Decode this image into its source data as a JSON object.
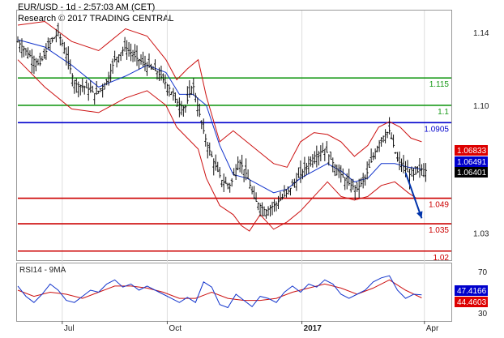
{
  "header": {
    "line1": "EUR/USD - 1d - 2:57:03 AM (CET)",
    "line2": "Research © 2017 TRADING CENTRAL"
  },
  "chart_data": {
    "type": "line",
    "instrument": "EUR/USD",
    "timeframe": "1d",
    "price_panel": {
      "y_ticks": [
        "1.14",
        "1.10",
        "1.03"
      ],
      "y_tick_values": [
        1.14,
        1.1,
        1.03
      ],
      "ylim": [
        1.015,
        1.152
      ],
      "x_labels": [
        "Jul",
        "Oct",
        "2017",
        "Apr"
      ],
      "x_label_positions": [
        33,
        111,
        211,
        302
      ],
      "bars_total": 322,
      "levels": [
        {
          "label": "1.115",
          "value": 1.115,
          "color": "#1a9a1a"
        },
        {
          "label": "1.1",
          "value": 1.1,
          "color": "#1a9a1a"
        },
        {
          "label": "1.0905",
          "value": 1.0905,
          "color": "#0000cc"
        },
        {
          "label": "1.049",
          "value": 1.049,
          "color": "#cc0000"
        },
        {
          "label": "1.035",
          "value": 1.035,
          "color": "#cc0000"
        },
        {
          "label": "1.02",
          "value": 1.02,
          "color": "#cc0000"
        }
      ],
      "price_tags": [
        {
          "label": "1.06833",
          "value": 1.06833,
          "color": "#dd0000"
        },
        {
          "label": "1.06491",
          "value": 1.06491,
          "color": "#0000cc"
        },
        {
          "label": "1.06401",
          "value": 1.06401,
          "color": "#000000"
        }
      ],
      "close_series": [
        [
          0,
          1.135
        ],
        [
          8,
          1.128
        ],
        [
          16,
          1.122
        ],
        [
          24,
          1.134
        ],
        [
          30,
          1.14
        ],
        [
          36,
          1.128
        ],
        [
          42,
          1.112
        ],
        [
          50,
          1.11
        ],
        [
          58,
          1.106
        ],
        [
          66,
          1.113
        ],
        [
          72,
          1.125
        ],
        [
          80,
          1.132
        ],
        [
          88,
          1.126
        ],
        [
          96,
          1.122
        ],
        [
          104,
          1.118
        ],
        [
          112,
          1.11
        ],
        [
          118,
          1.102
        ],
        [
          124,
          1.098
        ],
        [
          130,
          1.112
        ],
        [
          134,
          1.098
        ],
        [
          140,
          1.08
        ],
        [
          146,
          1.068
        ],
        [
          152,
          1.058
        ],
        [
          158,
          1.056
        ],
        [
          164,
          1.07
        ],
        [
          170,
          1.062
        ],
        [
          176,
          1.048
        ],
        [
          184,
          1.042
        ],
        [
          192,
          1.046
        ],
        [
          200,
          1.052
        ],
        [
          206,
          1.058
        ],
        [
          212,
          1.064
        ],
        [
          220,
          1.072
        ],
        [
          228,
          1.076
        ],
        [
          236,
          1.066
        ],
        [
          244,
          1.058
        ],
        [
          252,
          1.054
        ],
        [
          258,
          1.06
        ],
        [
          264,
          1.072
        ],
        [
          270,
          1.082
        ],
        [
          276,
          1.086
        ],
        [
          282,
          1.07
        ],
        [
          288,
          1.065
        ],
        [
          292,
          1.061
        ],
        [
          296,
          1.063
        ],
        [
          300,
          1.065
        ],
        [
          304,
          1.064
        ]
      ],
      "bollinger_upper": [
        [
          0,
          1.144
        ],
        [
          20,
          1.146
        ],
        [
          40,
          1.135
        ],
        [
          60,
          1.13
        ],
        [
          80,
          1.142
        ],
        [
          96,
          1.138
        ],
        [
          110,
          1.125
        ],
        [
          118,
          1.114
        ],
        [
          126,
          1.12
        ],
        [
          134,
          1.125
        ],
        [
          140,
          1.105
        ],
        [
          150,
          1.08
        ],
        [
          160,
          1.086
        ],
        [
          170,
          1.08
        ],
        [
          180,
          1.074
        ],
        [
          190,
          1.068
        ],
        [
          200,
          1.066
        ],
        [
          210,
          1.08
        ],
        [
          220,
          1.085
        ],
        [
          230,
          1.084
        ],
        [
          240,
          1.08
        ],
        [
          250,
          1.072
        ],
        [
          260,
          1.078
        ],
        [
          268,
          1.088
        ],
        [
          276,
          1.091
        ],
        [
          284,
          1.088
        ],
        [
          292,
          1.082
        ],
        [
          300,
          1.08
        ]
      ],
      "bollinger_lower": [
        [
          0,
          1.125
        ],
        [
          20,
          1.11
        ],
        [
          40,
          1.098
        ],
        [
          60,
          1.096
        ],
        [
          80,
          1.104
        ],
        [
          96,
          1.108
        ],
        [
          110,
          1.1
        ],
        [
          118,
          1.088
        ],
        [
          126,
          1.082
        ],
        [
          134,
          1.076
        ],
        [
          140,
          1.06
        ],
        [
          150,
          1.045
        ],
        [
          160,
          1.04
        ],
        [
          166,
          1.034
        ],
        [
          172,
          1.031
        ],
        [
          180,
          1.04
        ],
        [
          190,
          1.032
        ],
        [
          200,
          1.036
        ],
        [
          210,
          1.042
        ],
        [
          220,
          1.05
        ],
        [
          230,
          1.058
        ],
        [
          240,
          1.05
        ],
        [
          250,
          1.048
        ],
        [
          260,
          1.05
        ],
        [
          270,
          1.056
        ],
        [
          280,
          1.058
        ],
        [
          290,
          1.052
        ],
        [
          296,
          1.049
        ]
      ],
      "moving_average": [
        [
          0,
          1.136
        ],
        [
          20,
          1.132
        ],
        [
          40,
          1.122
        ],
        [
          60,
          1.11
        ],
        [
          80,
          1.116
        ],
        [
          96,
          1.122
        ],
        [
          110,
          1.118
        ],
        [
          120,
          1.106
        ],
        [
          130,
          1.106
        ],
        [
          140,
          1.1
        ],
        [
          150,
          1.078
        ],
        [
          160,
          1.062
        ],
        [
          170,
          1.06
        ],
        [
          180,
          1.056
        ],
        [
          190,
          1.052
        ],
        [
          200,
          1.054
        ],
        [
          210,
          1.06
        ],
        [
          220,
          1.064
        ],
        [
          230,
          1.068
        ],
        [
          240,
          1.064
        ],
        [
          250,
          1.058
        ],
        [
          260,
          1.06
        ],
        [
          270,
          1.068
        ],
        [
          280,
          1.068
        ],
        [
          290,
          1.066
        ],
        [
          300,
          1.065
        ]
      ],
      "forecast_arrow": {
        "from": [
          288,
          1.063
        ],
        "to": [
          300,
          1.038
        ],
        "color": "#0033aa"
      }
    },
    "rsi_panel": {
      "title": "RSI14 - 9MA",
      "y_ticks": [
        "70",
        "30"
      ],
      "y_tick_values": [
        70,
        30
      ],
      "ylim": [
        22,
        78
      ],
      "price_tags": [
        {
          "label": "47.4166",
          "value": 47.4166,
          "color": "#0000cc"
        },
        {
          "label": "44.4603",
          "value": 44.4603,
          "color": "#dd0000"
        }
      ],
      "rsi_series": [
        [
          0,
          56
        ],
        [
          6,
          46
        ],
        [
          12,
          40
        ],
        [
          18,
          48
        ],
        [
          24,
          58
        ],
        [
          30,
          52
        ],
        [
          36,
          42
        ],
        [
          42,
          40
        ],
        [
          48,
          46
        ],
        [
          54,
          52
        ],
        [
          60,
          50
        ],
        [
          66,
          58
        ],
        [
          72,
          62
        ],
        [
          78,
          55
        ],
        [
          84,
          58
        ],
        [
          90,
          52
        ],
        [
          96,
          56
        ],
        [
          102,
          52
        ],
        [
          108,
          48
        ],
        [
          114,
          44
        ],
        [
          120,
          40
        ],
        [
          126,
          45
        ],
        [
          132,
          40
        ],
        [
          138,
          60
        ],
        [
          144,
          55
        ],
        [
          150,
          38
        ],
        [
          156,
          35
        ],
        [
          162,
          48
        ],
        [
          168,
          42
        ],
        [
          174,
          36
        ],
        [
          180,
          46
        ],
        [
          186,
          44
        ],
        [
          192,
          40
        ],
        [
          198,
          50
        ],
        [
          204,
          56
        ],
        [
          210,
          50
        ],
        [
          216,
          58
        ],
        [
          222,
          55
        ],
        [
          228,
          62
        ],
        [
          234,
          58
        ],
        [
          240,
          48
        ],
        [
          246,
          44
        ],
        [
          252,
          48
        ],
        [
          258,
          52
        ],
        [
          264,
          60
        ],
        [
          270,
          64
        ],
        [
          276,
          66
        ],
        [
          282,
          52
        ],
        [
          288,
          44
        ],
        [
          294,
          48
        ],
        [
          300,
          47.4
        ]
      ],
      "rsi_ma": [
        [
          0,
          52
        ],
        [
          12,
          46
        ],
        [
          24,
          50
        ],
        [
          36,
          48
        ],
        [
          48,
          44
        ],
        [
          60,
          50
        ],
        [
          72,
          56
        ],
        [
          84,
          56
        ],
        [
          96,
          54
        ],
        [
          108,
          50
        ],
        [
          120,
          44
        ],
        [
          132,
          44
        ],
        [
          144,
          50
        ],
        [
          156,
          44
        ],
        [
          168,
          42
        ],
        [
          180,
          42
        ],
        [
          192,
          44
        ],
        [
          204,
          50
        ],
        [
          216,
          54
        ],
        [
          228,
          58
        ],
        [
          240,
          54
        ],
        [
          252,
          48
        ],
        [
          264,
          54
        ],
        [
          276,
          62
        ],
        [
          288,
          52
        ],
        [
          300,
          44.5
        ]
      ]
    }
  }
}
